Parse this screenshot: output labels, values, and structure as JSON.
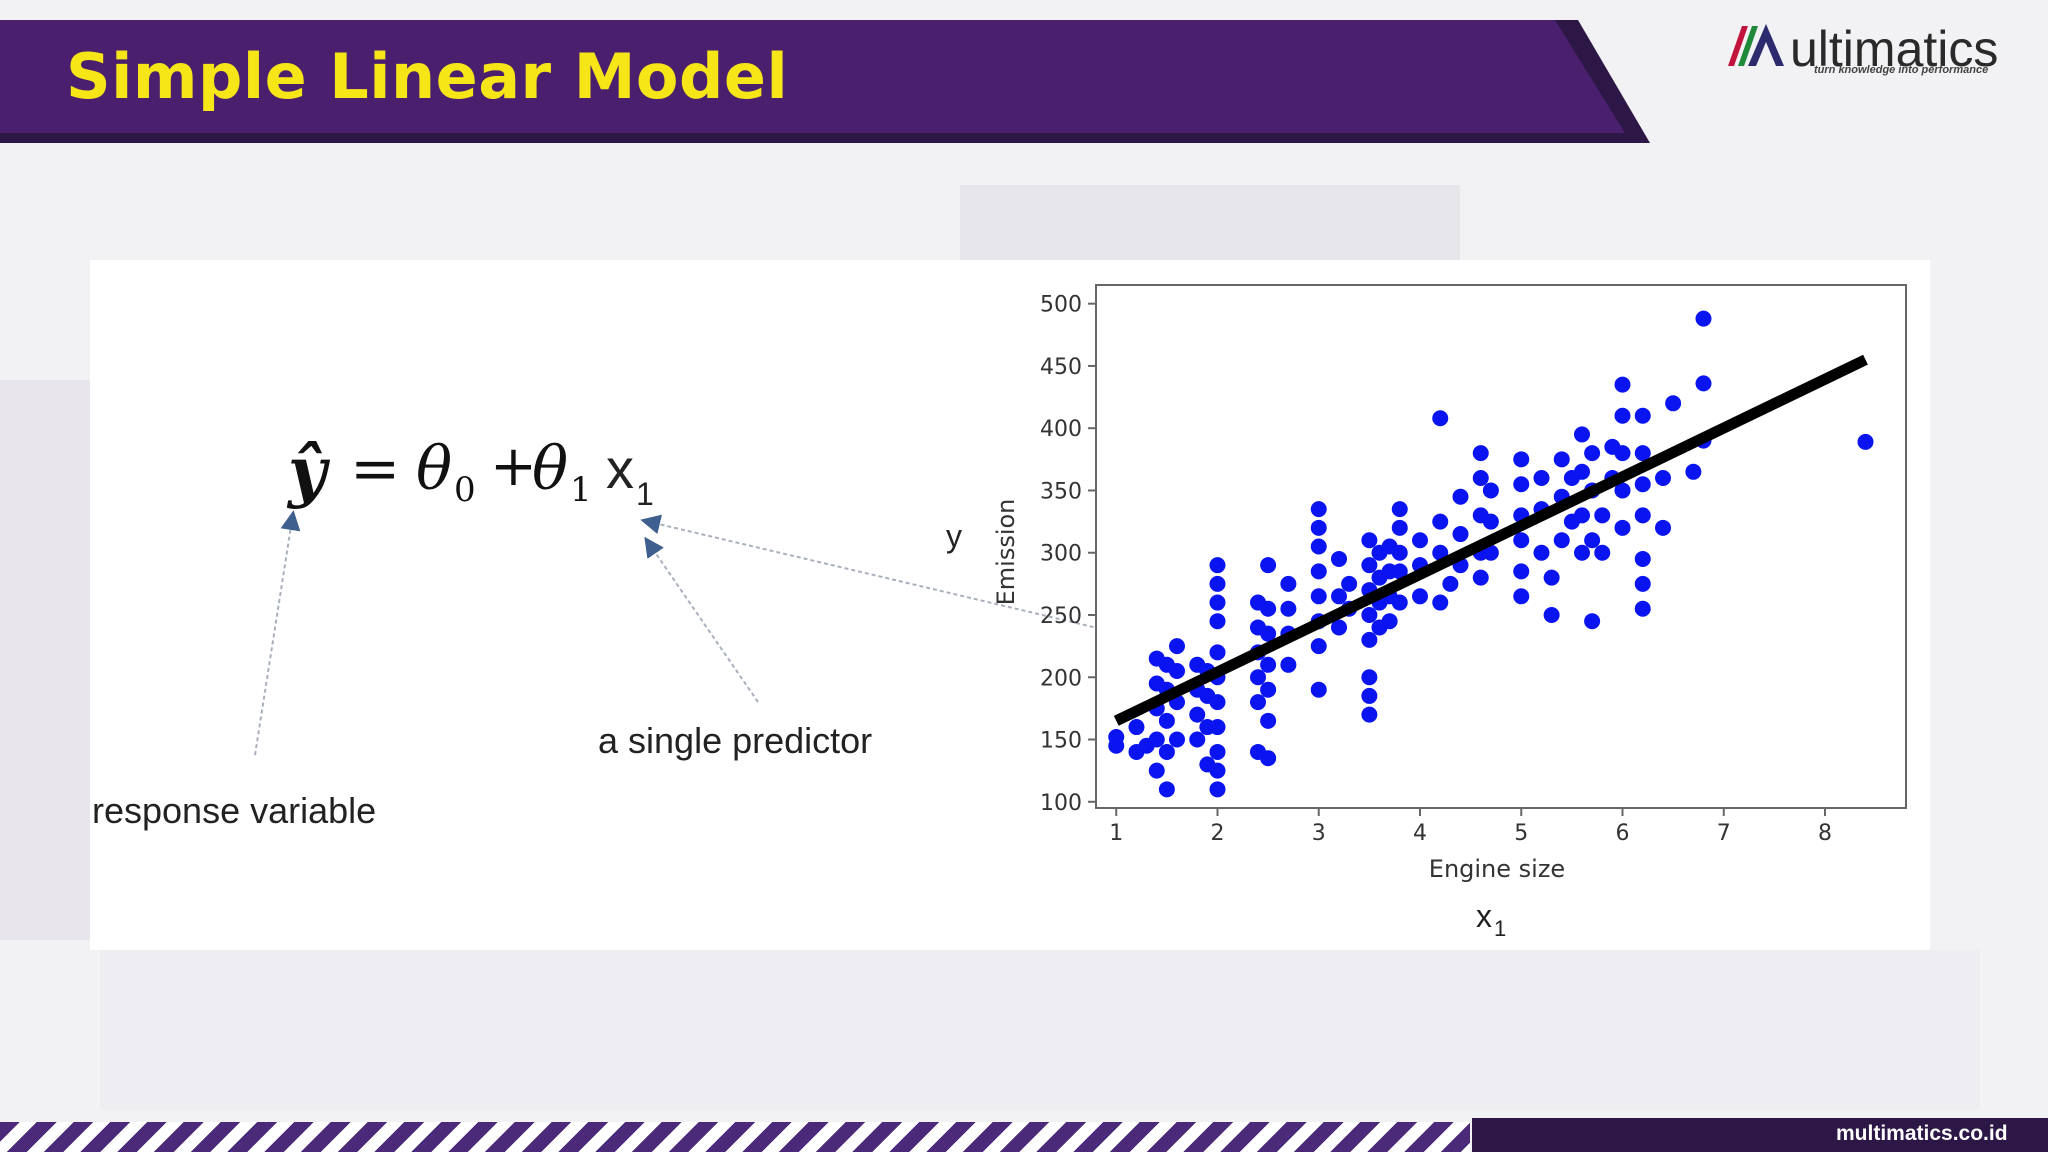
{
  "slide": {
    "title": "Simple Linear Model",
    "footer_url": "multimatics.co.id",
    "colors": {
      "header": "#4a1f6e",
      "header_shadow": "#2c1747",
      "title": "#f7e617",
      "points": "#0a14f0",
      "line": "#000000"
    }
  },
  "logo": {
    "text": "ultimatics",
    "tagline": "turn knowledge into performance"
  },
  "equation": {
    "lhs": "ŷ",
    "equals": "=",
    "theta": "θ",
    "sub0": "0",
    "plus": "+",
    "sub1": "1",
    "x": "x",
    "xsub": "1"
  },
  "annotations": {
    "response": "response variable",
    "predictor": "a single predictor",
    "y": "y",
    "x": "x",
    "xsub": "1"
  },
  "chart_data": {
    "type": "scatter",
    "xlabel": "Engine size",
    "ylabel": "Emission",
    "xlim": [
      0.8,
      8.8
    ],
    "ylim": [
      95,
      515
    ],
    "xticks": [
      1,
      2,
      3,
      4,
      5,
      6,
      7,
      8
    ],
    "yticks": [
      100,
      150,
      200,
      250,
      300,
      350,
      400,
      450,
      500
    ],
    "grid": false,
    "fit_line": {
      "x": [
        1.0,
        8.4
      ],
      "y": [
        165,
        455
      ]
    },
    "points": [
      [
        1.0,
        145
      ],
      [
        1.0,
        152
      ],
      [
        1.2,
        140
      ],
      [
        1.2,
        160
      ],
      [
        1.3,
        145
      ],
      [
        1.4,
        125
      ],
      [
        1.4,
        150
      ],
      [
        1.4,
        175
      ],
      [
        1.4,
        195
      ],
      [
        1.4,
        215
      ],
      [
        1.5,
        110
      ],
      [
        1.5,
        140
      ],
      [
        1.5,
        165
      ],
      [
        1.5,
        190
      ],
      [
        1.5,
        210
      ],
      [
        1.6,
        150
      ],
      [
        1.6,
        180
      ],
      [
        1.6,
        205
      ],
      [
        1.6,
        225
      ],
      [
        1.8,
        150
      ],
      [
        1.8,
        170
      ],
      [
        1.8,
        190
      ],
      [
        1.8,
        210
      ],
      [
        1.9,
        130
      ],
      [
        1.9,
        160
      ],
      [
        1.9,
        185
      ],
      [
        1.9,
        205
      ],
      [
        2.0,
        110
      ],
      [
        2.0,
        125
      ],
      [
        2.0,
        140
      ],
      [
        2.0,
        160
      ],
      [
        2.0,
        180
      ],
      [
        2.0,
        200
      ],
      [
        2.0,
        220
      ],
      [
        2.0,
        245
      ],
      [
        2.0,
        260
      ],
      [
        2.0,
        275
      ],
      [
        2.0,
        290
      ],
      [
        2.4,
        140
      ],
      [
        2.4,
        180
      ],
      [
        2.4,
        200
      ],
      [
        2.4,
        220
      ],
      [
        2.4,
        240
      ],
      [
        2.4,
        260
      ],
      [
        2.5,
        135
      ],
      [
        2.5,
        165
      ],
      [
        2.5,
        190
      ],
      [
        2.5,
        210
      ],
      [
        2.5,
        235
      ],
      [
        2.5,
        255
      ],
      [
        2.5,
        290
      ],
      [
        2.7,
        210
      ],
      [
        2.7,
        235
      ],
      [
        2.7,
        255
      ],
      [
        2.7,
        275
      ],
      [
        3.0,
        190
      ],
      [
        3.0,
        225
      ],
      [
        3.0,
        245
      ],
      [
        3.0,
        265
      ],
      [
        3.0,
        285
      ],
      [
        3.0,
        305
      ],
      [
        3.0,
        320
      ],
      [
        3.0,
        335
      ],
      [
        3.2,
        240
      ],
      [
        3.2,
        265
      ],
      [
        3.2,
        295
      ],
      [
        3.3,
        255
      ],
      [
        3.3,
        275
      ],
      [
        3.5,
        170
      ],
      [
        3.5,
        185
      ],
      [
        3.5,
        200
      ],
      [
        3.5,
        230
      ],
      [
        3.5,
        250
      ],
      [
        3.5,
        270
      ],
      [
        3.5,
        290
      ],
      [
        3.5,
        310
      ],
      [
        3.6,
        240
      ],
      [
        3.6,
        260
      ],
      [
        3.6,
        280
      ],
      [
        3.6,
        300
      ],
      [
        3.7,
        245
      ],
      [
        3.7,
        265
      ],
      [
        3.7,
        285
      ],
      [
        3.7,
        305
      ],
      [
        3.8,
        260
      ],
      [
        3.8,
        285
      ],
      [
        3.8,
        300
      ],
      [
        3.8,
        320
      ],
      [
        3.8,
        335
      ],
      [
        4.0,
        265
      ],
      [
        4.0,
        290
      ],
      [
        4.0,
        310
      ],
      [
        4.2,
        260
      ],
      [
        4.2,
        300
      ],
      [
        4.2,
        325
      ],
      [
        4.2,
        408
      ],
      [
        4.3,
        275
      ],
      [
        4.4,
        290
      ],
      [
        4.4,
        315
      ],
      [
        4.4,
        345
      ],
      [
        4.6,
        280
      ],
      [
        4.6,
        300
      ],
      [
        4.6,
        330
      ],
      [
        4.6,
        360
      ],
      [
        4.6,
        380
      ],
      [
        4.7,
        300
      ],
      [
        4.7,
        325
      ],
      [
        4.7,
        350
      ],
      [
        5.0,
        265
      ],
      [
        5.0,
        285
      ],
      [
        5.0,
        310
      ],
      [
        5.0,
        330
      ],
      [
        5.0,
        355
      ],
      [
        5.0,
        375
      ],
      [
        5.2,
        300
      ],
      [
        5.2,
        335
      ],
      [
        5.2,
        360
      ],
      [
        5.3,
        250
      ],
      [
        5.3,
        280
      ],
      [
        5.4,
        310
      ],
      [
        5.4,
        345
      ],
      [
        5.4,
        375
      ],
      [
        5.5,
        325
      ],
      [
        5.5,
        360
      ],
      [
        5.6,
        300
      ],
      [
        5.6,
        330
      ],
      [
        5.6,
        365
      ],
      [
        5.6,
        395
      ],
      [
        5.7,
        245
      ],
      [
        5.7,
        310
      ],
      [
        5.7,
        350
      ],
      [
        5.7,
        380
      ],
      [
        5.8,
        300
      ],
      [
        5.8,
        330
      ],
      [
        5.9,
        360
      ],
      [
        5.9,
        385
      ],
      [
        6.0,
        320
      ],
      [
        6.0,
        350
      ],
      [
        6.0,
        380
      ],
      [
        6.0,
        410
      ],
      [
        6.0,
        435
      ],
      [
        6.2,
        255
      ],
      [
        6.2,
        275
      ],
      [
        6.2,
        295
      ],
      [
        6.2,
        330
      ],
      [
        6.2,
        355
      ],
      [
        6.2,
        380
      ],
      [
        6.2,
        410
      ],
      [
        6.4,
        320
      ],
      [
        6.4,
        360
      ],
      [
        6.5,
        420
      ],
      [
        6.7,
        365
      ],
      [
        6.8,
        390
      ],
      [
        6.8,
        436
      ],
      [
        6.8,
        488
      ],
      [
        8.4,
        389
      ]
    ]
  }
}
